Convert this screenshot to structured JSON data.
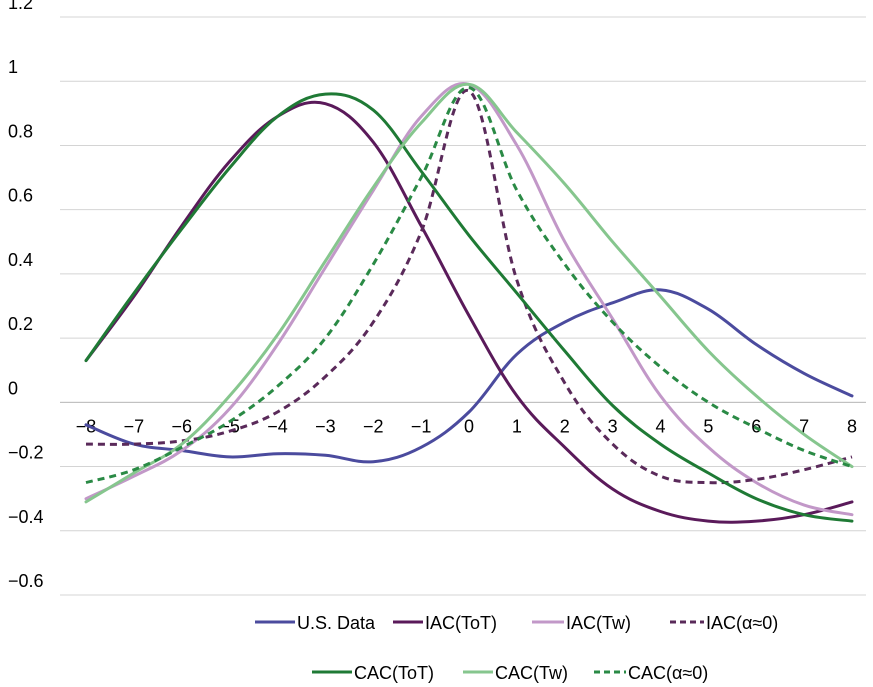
{
  "chart_data": {
    "type": "line",
    "x": [
      -8,
      -7,
      -6,
      -5,
      -4,
      -3,
      -2,
      -1,
      0,
      1,
      2,
      3,
      4,
      5,
      6,
      7,
      8
    ],
    "x_tick_labels": [
      "−8",
      "−7",
      "−6",
      "−5",
      "−4",
      "−3",
      "−2",
      "−1",
      "0",
      "1",
      "2",
      "3",
      "4",
      "5",
      "6",
      "7",
      "8"
    ],
    "y_ticks": [
      -0.6,
      -0.4,
      -0.2,
      0,
      0.2,
      0.4,
      0.6,
      0.8,
      1,
      1.2
    ],
    "y_tick_labels": [
      "−0.6",
      "−0.4",
      "−0.2",
      "0",
      "0.2",
      "0.4",
      "0.6",
      "0.8",
      "1",
      "1.2"
    ],
    "ylim": [
      -0.6,
      1.2
    ],
    "xlim": [
      -8,
      8
    ],
    "grid": "horizontal",
    "legend_position": "bottom",
    "series": [
      {
        "name": "U.S. Data",
        "color": "#4b4b9e",
        "dash": "solid",
        "values": [
          -0.07,
          -0.13,
          -0.15,
          -0.17,
          -0.16,
          -0.165,
          -0.185,
          -0.14,
          -0.03,
          0.15,
          0.25,
          0.31,
          0.35,
          0.29,
          0.18,
          0.09,
          0.02
        ]
      },
      {
        "name": "IAC(ToT)",
        "color": "#5a1a5a",
        "dash": "solid",
        "values": [
          0.13,
          0.33,
          0.55,
          0.75,
          0.89,
          0.93,
          0.81,
          0.55,
          0.27,
          0.02,
          -0.14,
          -0.27,
          -0.34,
          -0.37,
          -0.37,
          -0.35,
          -0.31
        ]
      },
      {
        "name": "IAC(Tw)",
        "color": "#c298c8",
        "dash": "solid",
        "values": [
          -0.3,
          -0.23,
          -0.15,
          -0.02,
          0.18,
          0.42,
          0.66,
          0.89,
          0.99,
          0.8,
          0.5,
          0.26,
          0.02,
          -0.14,
          -0.25,
          -0.32,
          -0.35
        ]
      },
      {
        "name": "IAC(α≈0)",
        "color": "#5a2a5a",
        "dash": "dashed",
        "values": [
          -0.13,
          -0.13,
          -0.12,
          -0.09,
          -0.03,
          0.08,
          0.25,
          0.53,
          0.97,
          0.38,
          0.06,
          -0.13,
          -0.23,
          -0.25,
          -0.24,
          -0.21,
          -0.17
        ]
      },
      {
        "name": "CAC(ToT)",
        "color": "#1f7a35",
        "dash": "solid",
        "values": [
          0.13,
          0.34,
          0.54,
          0.73,
          0.89,
          0.96,
          0.91,
          0.72,
          0.52,
          0.34,
          0.16,
          -0.01,
          -0.13,
          -0.22,
          -0.3,
          -0.35,
          -0.37
        ]
      },
      {
        "name": "CAC(Tw)",
        "color": "#86c68e",
        "dash": "solid",
        "values": [
          -0.31,
          -0.22,
          -0.13,
          0.02,
          0.21,
          0.44,
          0.67,
          0.87,
          0.99,
          0.84,
          0.68,
          0.5,
          0.33,
          0.16,
          0.02,
          -0.1,
          -0.2
        ]
      },
      {
        "name": "CAC(α≈0)",
        "color": "#2a8a45",
        "dash": "dashed",
        "values": [
          -0.25,
          -0.21,
          -0.14,
          -0.06,
          0.05,
          0.2,
          0.43,
          0.7,
          0.98,
          0.66,
          0.43,
          0.25,
          0.11,
          0.0,
          -0.08,
          -0.15,
          -0.2
        ]
      }
    ]
  }
}
